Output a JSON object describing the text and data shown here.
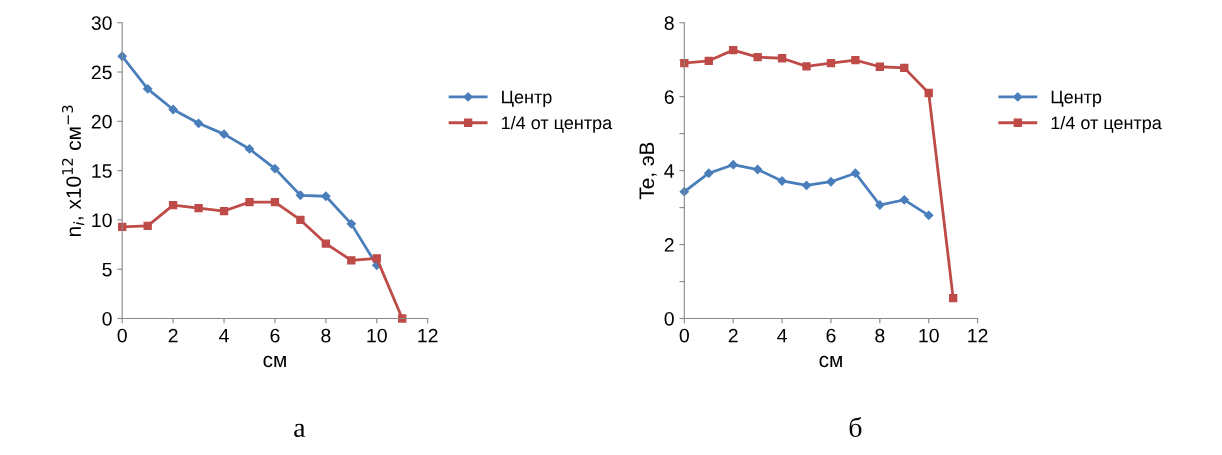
{
  "chart_data": [
    {
      "type": "line",
      "xlabel": "см",
      "ylabel": "n$_{i}$, x10$^{12}$ см$^{−3}$",
      "annotations": [
        "а"
      ],
      "xlim": [
        0,
        12
      ],
      "xticks": [
        0,
        2,
        4,
        6,
        8,
        10,
        12
      ],
      "ylim": [
        0,
        30
      ],
      "yticks": [
        0,
        5,
        10,
        15,
        20,
        25,
        30
      ],
      "legend": "right",
      "grid": false,
      "x": [
        0,
        1,
        2,
        3,
        4,
        5,
        6,
        7,
        8,
        9,
        10,
        11
      ],
      "series": [
        {
          "name": "Центр",
          "color": "#4a7ebb",
          "marker": "diamond",
          "values": [
            26.6,
            23.3,
            21.2,
            19.8,
            18.7,
            17.2,
            15.2,
            12.5,
            12.4,
            9.6,
            5.4,
            null
          ]
        },
        {
          "name": "1/4 от центра",
          "color": "#be4b48",
          "marker": "square",
          "values": [
            9.3,
            9.4,
            11.5,
            11.2,
            10.9,
            11.8,
            11.8,
            10.0,
            7.6,
            5.9,
            6.1,
            0
          ]
        }
      ]
    },
    {
      "type": "line",
      "xlabel": "см",
      "ylabel": "Te, эВ",
      "annotations": [
        "б"
      ],
      "xlim": [
        0,
        12
      ],
      "xticks": [
        0,
        2,
        4,
        6,
        8,
        10,
        12
      ],
      "ylim": [
        0,
        8
      ],
      "yticks": [
        0,
        {
          "value": 1,
          "label": null
        },
        2,
        {
          "value": 3,
          "label": null
        },
        4,
        {
          "value": 5,
          "label": null
        },
        6,
        {
          "value": 7,
          "label": null
        },
        8
      ],
      "legend": "right",
      "grid": false,
      "x": [
        0,
        1,
        2,
        3,
        4,
        5,
        6,
        7,
        8,
        9,
        10,
        11
      ],
      "series": [
        {
          "name": "Центр",
          "color": "#4a7ebb",
          "marker": "diamond",
          "values": [
            3.43,
            3.93,
            4.16,
            4.03,
            3.72,
            3.6,
            3.7,
            3.93,
            3.07,
            3.21,
            2.79,
            null
          ]
        },
        {
          "name": "1/4 от центра",
          "color": "#be4b48",
          "marker": "square",
          "values": [
            6.91,
            6.97,
            7.26,
            7.07,
            7.04,
            6.82,
            6.91,
            6.99,
            6.81,
            6.78,
            6.1,
            0.55
          ]
        }
      ]
    }
  ]
}
